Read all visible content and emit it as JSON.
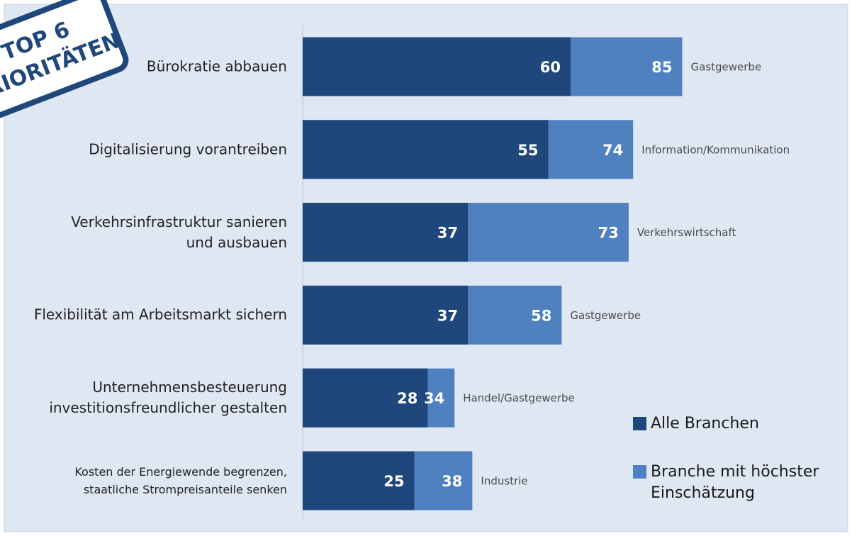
{
  "chart_data": {
    "type": "bar",
    "orientation": "horizontal",
    "overlap": true,
    "badge": [
      "TOP 6",
      "PRIORITÄTEN"
    ],
    "categories": [
      "Bürokratie abbauen",
      "Digitalisierung vorantreiben",
      "Verkehrsinfrastruktur sanieren\nund ausbauen",
      "Flexibilität am Arbeitsmarkt sichern",
      "Unternehmensbesteuerung\ninvestitionsfreundlicher gestalten",
      "Kosten der Energiewende begrenzen,\nstaatliche Strompreisanteile senken"
    ],
    "series": [
      {
        "name": "Alle Branchen",
        "color": "#1f477b",
        "values": [
          60,
          55,
          37,
          37,
          28,
          25
        ]
      },
      {
        "name": "Branche mit höchster\nEinschätzung",
        "color": "#4f80bf",
        "values": [
          85,
          74,
          73,
          58,
          34,
          38
        ]
      }
    ],
    "annotations": [
      "Gastgewerbe",
      "Information/Kommunikation",
      "Verkehrswirtschaft",
      "Gastgewerbe",
      "Handel/Gastgewerbe",
      "Industrie"
    ],
    "xlim": [
      0,
      100
    ]
  }
}
